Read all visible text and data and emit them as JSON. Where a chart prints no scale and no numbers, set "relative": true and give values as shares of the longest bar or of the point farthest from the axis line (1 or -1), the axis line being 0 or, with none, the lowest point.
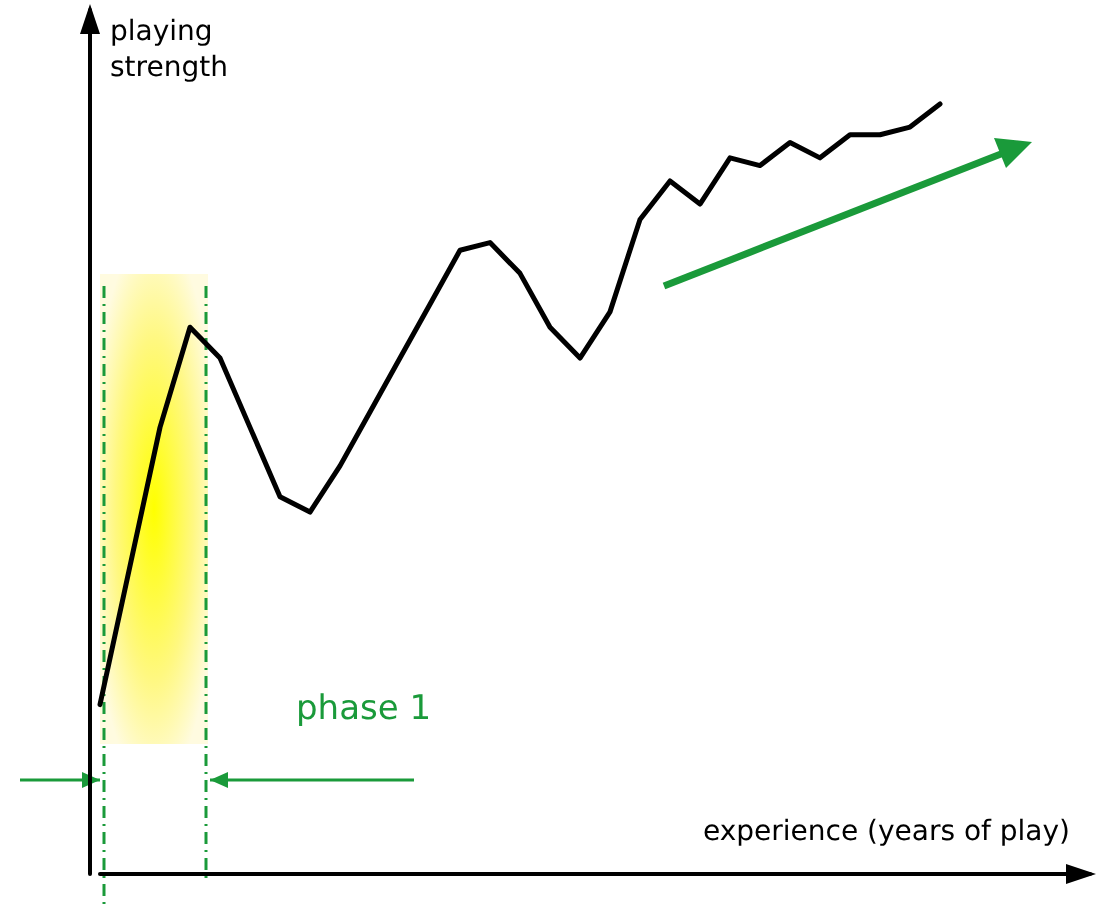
{
  "chart_data": {
    "type": "line",
    "relative": true,
    "xlabel": "experience (years of play)",
    "ylabel": "playing\nstrength",
    "marker": "none",
    "line_style": "solid",
    "categories": [
      null,
      null,
      null,
      null,
      null,
      null,
      null,
      null,
      null,
      null,
      null,
      null,
      null,
      null,
      null,
      null,
      null,
      null,
      null,
      null,
      null,
      null,
      null,
      null,
      null,
      null,
      null,
      null,
      null,
      null,
      null,
      null,
      null,
      null
    ],
    "series": [
      {
        "color": "#000000",
        "values": [
          0.22,
          0.4,
          0.58,
          0.71,
          0.67,
          0.58,
          0.49,
          0.47,
          0.53,
          0.6,
          0.67,
          0.74,
          0.81,
          0.82,
          0.78,
          0.71,
          0.67,
          0.73,
          0.85,
          0.9,
          0.87,
          0.93,
          0.92,
          0.95,
          0.93,
          0.96,
          0.96,
          0.97,
          1,
          null,
          null,
          null,
          null,
          null
        ]
      }
    ],
    "annotations": [
      "phase 1"
    ]
  }
}
